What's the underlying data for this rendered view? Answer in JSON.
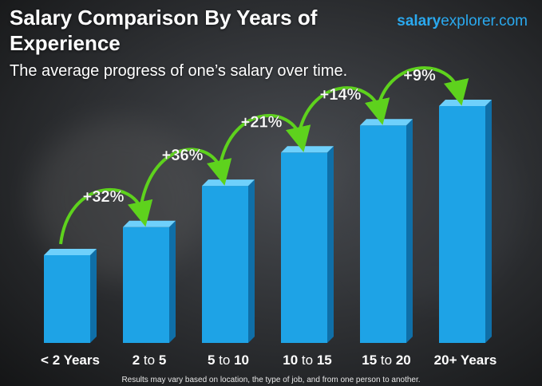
{
  "header": {
    "title": "Salary Comparison By Years of Experience",
    "subtitle": "The average progress of one’s salary over time.",
    "brand_part1": "salary",
    "brand_part2": "explorer.com"
  },
  "footer": {
    "note": "Results may vary based on location, the type of job, and from one person to another."
  },
  "colors": {
    "bar_front": "#1ea3e6",
    "bar_side": "#0f6fa8",
    "bar_top": "#6fd0fb",
    "arrow": "#5ed21d",
    "pct_text": "#ffffff"
  },
  "chart_data": {
    "type": "bar",
    "categories": [
      {
        "bold": "< 2 Years",
        "pre": "",
        "mid": "",
        "post": ""
      },
      {
        "bold": "",
        "pre": "2",
        "mid": " to ",
        "post": "5"
      },
      {
        "bold": "",
        "pre": "5",
        "mid": " to ",
        "post": "10"
      },
      {
        "bold": "",
        "pre": "10",
        "mid": " to ",
        "post": "15"
      },
      {
        "bold": "",
        "pre": "15",
        "mid": " to ",
        "post": "20"
      },
      {
        "bold": "20+ Years",
        "pre": "",
        "mid": "",
        "post": ""
      }
    ],
    "values": [
      1.0,
      1.32,
      1.79,
      2.17,
      2.48,
      2.7
    ],
    "increases": [
      "+32%",
      "+36%",
      "+21%",
      "+14%",
      "+9%"
    ],
    "y_axis_shown": false
  }
}
